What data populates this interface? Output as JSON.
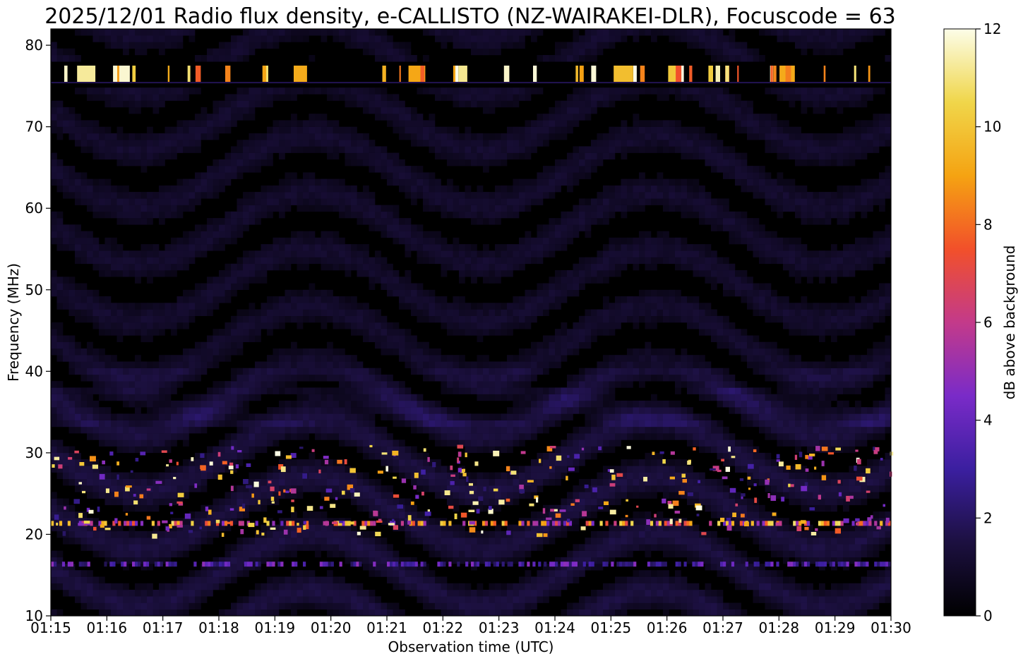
{
  "chart_data": {
    "type": "heatmap",
    "title": "2025/12/01 Radio flux density, e-CALLISTO (NZ-WAIRAKEI-DLR), Focuscode = 63",
    "xlabel": "Observation time (UTC)",
    "ylabel": "Frequency (MHz)",
    "colorbar_label": "dB above background",
    "x_ticks": [
      "01:15",
      "01:16",
      "01:17",
      "01:18",
      "01:19",
      "01:20",
      "01:21",
      "01:22",
      "01:23",
      "01:24",
      "01:25",
      "01:26",
      "01:27",
      "01:28",
      "01:29",
      "01:30"
    ],
    "xlim": [
      "01:15",
      "01:30"
    ],
    "y_ticks": [
      "10",
      "20",
      "30",
      "40",
      "50",
      "60",
      "70",
      "80"
    ],
    "y_tick_values": [
      10,
      20,
      30,
      40,
      50,
      60,
      70,
      80
    ],
    "ylim": [
      10,
      82
    ],
    "colorbar_ticks": [
      "0",
      "2",
      "4",
      "6",
      "8",
      "10",
      "12"
    ],
    "colorbar_tick_values": [
      0,
      2,
      4,
      6,
      8,
      10,
      12
    ],
    "colorbar_range": [
      0,
      12
    ],
    "colormap": [
      "#000000",
      "#1c1040",
      "#3b1fa0",
      "#7a2bc8",
      "#c33a8a",
      "#f2502a",
      "#f5a312",
      "#f0d64a",
      "#fcfde8"
    ],
    "features": [
      {
        "label": "interference band",
        "freq_range_mhz": [
          75.5,
          77.5
        ],
        "intensity_db": 12
      },
      {
        "label": "bursts",
        "freq_range_mhz": [
          20,
          31
        ],
        "intensity_db": 10
      },
      {
        "label": "line",
        "freq_mhz": 21.3,
        "intensity_db": 11
      },
      {
        "label": "line",
        "freq_mhz": 16.3,
        "intensity_db": 5
      },
      {
        "label": "arcs",
        "freq_range_mhz": [
          33,
          38
        ],
        "intensity_db": 2
      }
    ]
  }
}
